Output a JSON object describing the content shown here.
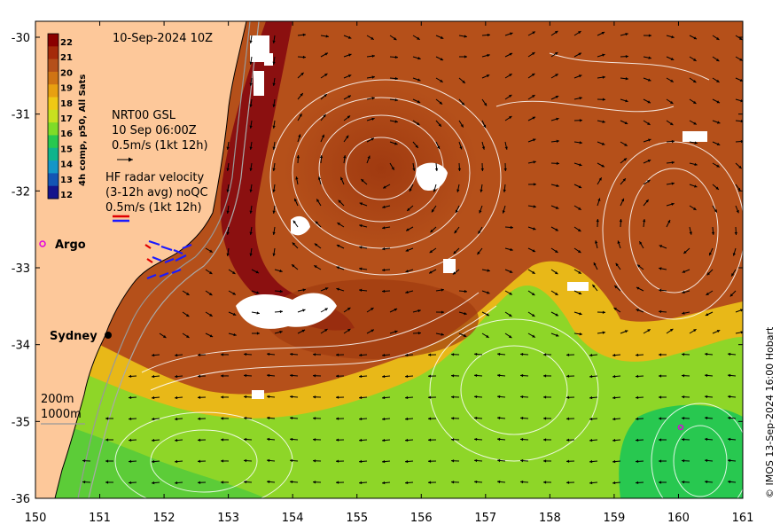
{
  "map": {
    "date_label": "10-Sep-2024 10Z",
    "product_label": "4h comp, p50, All Sats",
    "altimetry": {
      "name": "NRT00 GSL",
      "time": "10 Sep 06:00Z",
      "scale": "0.5m/s (1kt 12h)"
    },
    "hf_radar": {
      "title": "HF radar velocity",
      "avg": "(3-12h avg) noQC",
      "scale": "0.5m/s (1kt 12h)"
    },
    "argo_label": "Argo",
    "city_label": "Sydney",
    "isobaths": [
      "200m",
      "1000m"
    ],
    "credit": "© IMOS 13-Sep-2024 16:00 Hobart",
    "x_ticks": [
      "150",
      "151",
      "152",
      "153",
      "154",
      "155",
      "156",
      "157",
      "158",
      "159",
      "160",
      "161"
    ],
    "y_ticks": [
      "-30",
      "-31",
      "-32",
      "-33",
      "-34",
      "-35",
      "-36"
    ],
    "colorbar": {
      "ticks": [
        "22",
        "21",
        "20",
        "19",
        "18",
        "17",
        "16",
        "15",
        "14",
        "13",
        "12"
      ],
      "colors": [
        "#8b0000",
        "#a52a0a",
        "#b5501a",
        "#d07414",
        "#e8a010",
        "#f0c814",
        "#c8e020",
        "#7fdc28",
        "#28c850",
        "#10b48c",
        "#1496c8",
        "#1455b4",
        "#14148c"
      ]
    },
    "colors": {
      "land": "#fdc89a",
      "ocean_warm": "#b5501a",
      "ocean_core": "#8b1010",
      "ocean_cool": "#8ed628",
      "ocean_cold": "#28c850",
      "ocean_yellow": "#e8b818",
      "cloud": "#ffffff",
      "argo": "#e000e0",
      "radar_blue": "#1a1aff",
      "radar_red": "#e00000"
    }
  }
}
